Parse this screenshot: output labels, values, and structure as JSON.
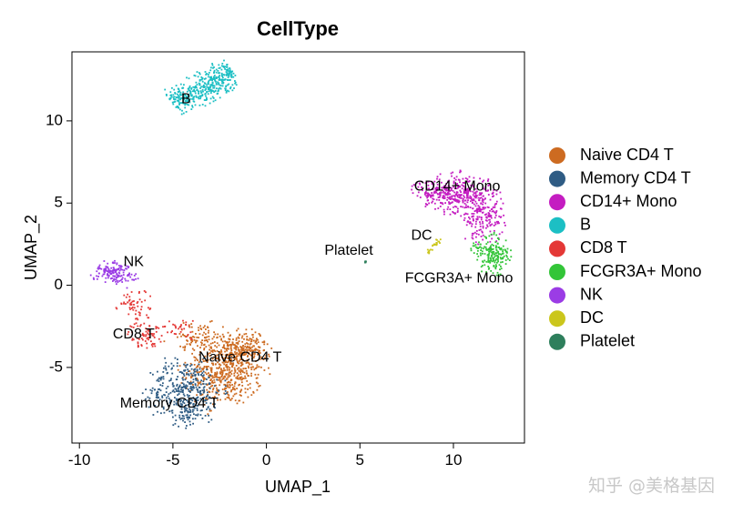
{
  "chart_data": {
    "type": "scatter",
    "title": "CellType",
    "xlabel": "UMAP_1",
    "ylabel": "UMAP_2",
    "xlim": [
      -10.4,
      13.8
    ],
    "ylim": [
      -9.6,
      14.2
    ],
    "x_ticks": [
      -10,
      -5,
      0,
      5,
      10
    ],
    "x_tick_labels": [
      "-10",
      "-5",
      "0",
      "5",
      "10"
    ],
    "y_ticks": [
      -5,
      0,
      5,
      10
    ],
    "y_tick_labels": [
      "-5",
      "0",
      "5",
      "10"
    ],
    "grid": false,
    "legend_position": "right",
    "series": [
      {
        "name": "Naive CD4 T",
        "color": "#CD6B21",
        "clusters": [
          {
            "cx": -2.2,
            "cy": -5.2,
            "sx": 1.0,
            "sy": 1.05,
            "n": 540
          },
          {
            "cx": -1.2,
            "cy": -3.9,
            "sx": 0.6,
            "sy": 0.6,
            "n": 170
          },
          {
            "cx": -3.6,
            "cy": -3.2,
            "sx": 0.8,
            "sy": 0.45,
            "n": 90
          }
        ],
        "label_x": -1.4,
        "label_y": -4.4
      },
      {
        "name": "Memory CD4 T",
        "color": "#2F5C84",
        "clusters": [
          {
            "cx": -4.3,
            "cy": -6.4,
            "sx": 0.95,
            "sy": 0.95,
            "n": 380
          },
          {
            "cx": -4.4,
            "cy": -8.0,
            "sx": 0.35,
            "sy": 0.3,
            "n": 30
          }
        ],
        "label_x": -5.2,
        "label_y": -7.2
      },
      {
        "name": "CD14+ Mono",
        "color": "#C41DC1",
        "clusters": [
          {
            "cx": 10.2,
            "cy": 5.6,
            "sx": 0.85,
            "sy": 0.55,
            "n": 320
          },
          {
            "cx": 11.6,
            "cy": 4.2,
            "sx": 0.55,
            "sy": 0.8,
            "n": 200
          },
          {
            "cx": 8.8,
            "cy": 5.7,
            "sx": 0.5,
            "sy": 0.35,
            "n": 60
          }
        ],
        "label_x": 10.2,
        "label_y": 6.0
      },
      {
        "name": "B",
        "color": "#1CBFC4",
        "segment": {
          "x1": -5.0,
          "y1": 11.0,
          "x2": -1.8,
          "y2": 13.0,
          "w": 0.45,
          "n": 430
        },
        "label_x": -4.3,
        "label_y": 11.3
      },
      {
        "name": "CD8 T",
        "color": "#E43836",
        "clusters": [
          {
            "cx": -6.4,
            "cy": -3.0,
            "sx": 0.45,
            "sy": 0.45,
            "n": 70
          },
          {
            "cx": -7.0,
            "cy": -1.2,
            "sx": 0.5,
            "sy": 0.5,
            "n": 60
          },
          {
            "cx": -4.6,
            "cy": -2.6,
            "sx": 0.45,
            "sy": 0.4,
            "n": 30
          }
        ],
        "label_x": -7.1,
        "label_y": -3.0
      },
      {
        "name": "FCGR3A+ Mono",
        "color": "#33C538",
        "clusters": [
          {
            "cx": 12.2,
            "cy": 1.8,
            "sx": 0.4,
            "sy": 0.55,
            "n": 160
          },
          {
            "cx": 11.4,
            "cy": 2.3,
            "sx": 0.3,
            "sy": 0.25,
            "n": 30
          }
        ],
        "label_x": 10.3,
        "label_y": 0.4
      },
      {
        "name": "NK",
        "color": "#9B3CE5",
        "clusters": [
          {
            "cx": -8.3,
            "cy": 0.8,
            "sx": 0.45,
            "sy": 0.3,
            "n": 120
          },
          {
            "cx": -7.6,
            "cy": 0.5,
            "sx": 0.35,
            "sy": 0.3,
            "n": 40
          }
        ],
        "label_x": -7.1,
        "label_y": 1.4
      },
      {
        "name": "DC",
        "color": "#CBC61C",
        "segment": {
          "x1": 8.6,
          "y1": 2.0,
          "x2": 9.3,
          "y2": 2.8,
          "w": 0.07,
          "n": 24
        },
        "label_x": 8.3,
        "label_y": 3.0
      },
      {
        "name": "Platelet",
        "color": "#2E7F5C",
        "clusters": [
          {
            "cx": 5.3,
            "cy": 1.4,
            "sx": 0.06,
            "sy": 0.06,
            "n": 8
          }
        ],
        "label_x": 4.4,
        "label_y": 2.1
      }
    ]
  },
  "watermark": "知乎 @美格基因"
}
